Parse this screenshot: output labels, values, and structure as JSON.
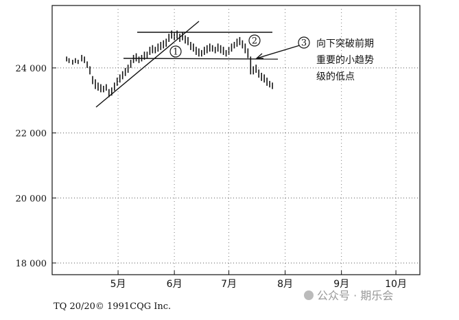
{
  "chart_data": {
    "type": "hilo",
    "x": [
      1.7,
      3,
      5,
      6.5,
      8,
      10,
      11.5,
      13,
      14.5,
      16,
      17.5,
      19,
      20.5,
      22,
      23.5,
      25,
      26.5,
      28,
      29.5,
      31,
      32.5,
      34,
      35.5,
      37,
      38.5,
      40,
      41.5,
      43,
      44.5,
      46,
      47.5,
      49,
      50.5,
      52,
      53.5,
      55,
      56.5,
      58,
      59.5,
      61,
      62.5,
      64,
      65.5,
      67,
      68.5,
      70,
      71.5,
      73,
      74.5,
      76,
      77.5,
      79,
      80.5,
      82,
      83.5,
      85,
      86.5,
      88,
      89.5,
      91,
      92.5,
      94,
      95.5,
      97,
      98.5,
      100,
      101.5,
      103,
      104.5,
      106,
      107.5,
      109,
      110.5,
      112,
      113.5,
      115
    ],
    "high": [
      24350,
      24300,
      24250,
      24300,
      24250,
      24400,
      24350,
      24200,
      24050,
      23750,
      23650,
      23550,
      23500,
      23450,
      23500,
      23350,
      23400,
      23550,
      23700,
      23800,
      23900,
      24000,
      24100,
      24250,
      24400,
      24450,
      24350,
      24400,
      24500,
      24500,
      24650,
      24700,
      24650,
      24750,
      24800,
      24850,
      24900,
      25050,
      25150,
      25100,
      25150,
      25050,
      25100,
      25000,
      24950,
      24800,
      24750,
      24650,
      24600,
      24550,
      24650,
      24700,
      24750,
      24700,
      24650,
      24750,
      24700,
      24650,
      24550,
      24650,
      24750,
      24800,
      24900,
      24950,
      24850,
      24750,
      24600,
      24350,
      24050,
      24100,
      23950,
      23850,
      23800,
      23700,
      23600,
      23550
    ],
    "low": [
      24200,
      24150,
      24100,
      24150,
      24120,
      24200,
      24150,
      24000,
      23800,
      23500,
      23350,
      23300,
      23250,
      23250,
      23300,
      23100,
      23150,
      23300,
      23450,
      23550,
      23650,
      23750,
      23850,
      24000,
      24150,
      24200,
      24150,
      24200,
      24250,
      24300,
      24400,
      24450,
      24450,
      24500,
      24550,
      24600,
      24650,
      24800,
      24900,
      24850,
      24900,
      24800,
      24850,
      24750,
      24700,
      24550,
      24500,
      24400,
      24350,
      24350,
      24400,
      24450,
      24500,
      24500,
      24450,
      24500,
      24450,
      24400,
      24350,
      24400,
      24500,
      24600,
      24650,
      24700,
      24600,
      24450,
      24300,
      23800,
      23800,
      23850,
      23700,
      23600,
      23550,
      23450,
      23400,
      23350
    ],
    "xlim": [
      -6.3,
      196.2
    ],
    "ylim": [
      17640,
      25920
    ],
    "xticks": [
      {
        "value": 30,
        "label": "5月"
      },
      {
        "value": 61,
        "label": "6月"
      },
      {
        "value": 91,
        "label": "7月"
      },
      {
        "value": 122,
        "label": "8月"
      },
      {
        "value": 153,
        "label": "9月"
      },
      {
        "value": 183,
        "label": "10月"
      }
    ],
    "yticks": [
      {
        "value": 18000,
        "label": "18 000"
      },
      {
        "value": 20000,
        "label": "20 000"
      },
      {
        "value": 22000,
        "label": "22 000"
      },
      {
        "value": 24000,
        "label": "24 000"
      }
    ],
    "grid": true,
    "color": "#111111",
    "annotations": [
      "1",
      "2",
      "3",
      "向下突破前期",
      "重要的小趋势",
      "级的低点"
    ],
    "source": "TQ 20/20© 1991CQG Inc.",
    "watermark": "公众号 · 期乐会"
  }
}
